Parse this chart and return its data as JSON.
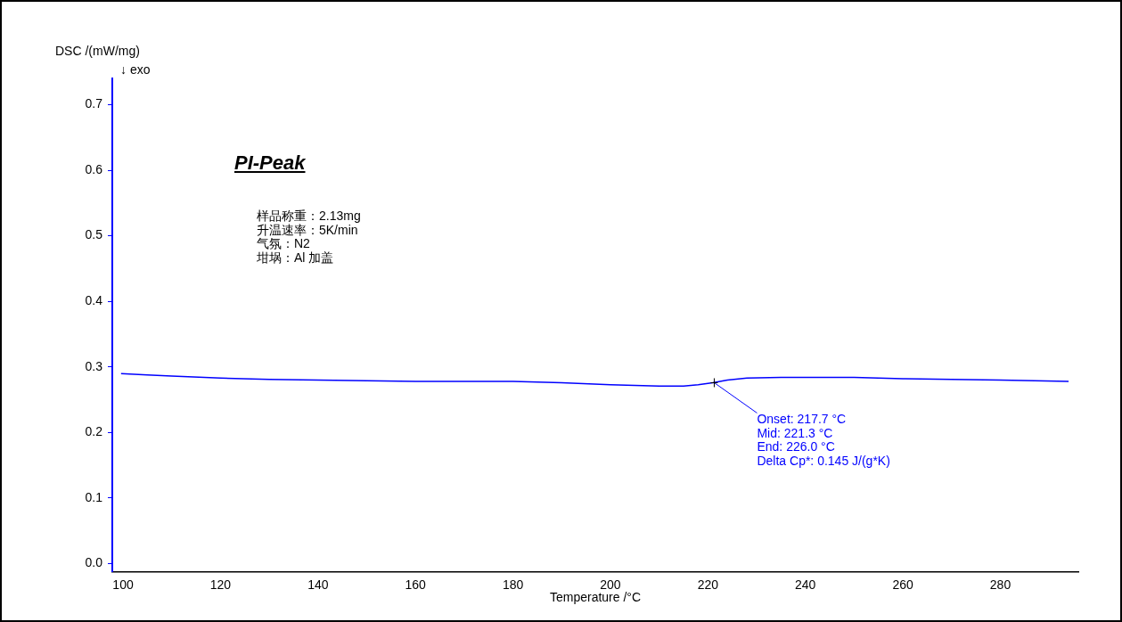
{
  "chart_data": {
    "type": "line",
    "title": "PI-Peak",
    "xlabel": "Temperature /°C",
    "ylabel": "DSC /(mW/mg)",
    "x": [
      99.6,
      105,
      110,
      120,
      130,
      140,
      150,
      160,
      170,
      180,
      190,
      200,
      210,
      215,
      218,
      221,
      224,
      228,
      235,
      240,
      250,
      260,
      270,
      280,
      294
    ],
    "series": [
      {
        "color": "#0000ff",
        "values": [
          0.29,
          0.288,
          0.286,
          0.283,
          0.281,
          0.28,
          0.279,
          0.278,
          0.278,
          0.278,
          0.276,
          0.273,
          0.271,
          0.271,
          0.273,
          0.276,
          0.28,
          0.283,
          0.284,
          0.284,
          0.284,
          0.282,
          0.281,
          0.28,
          0.278
        ]
      }
    ],
    "xlim": [
      97.8,
      296
    ],
    "xticks": [
      100,
      120,
      140,
      160,
      180,
      200,
      220,
      240,
      260,
      280
    ],
    "ylim": [
      -0.012,
      0.74
    ],
    "yticks": [
      {
        "value": 0,
        "label": "0.0"
      },
      0.1,
      0.2,
      0.3,
      0.4,
      0.5,
      0.6,
      0.7
    ],
    "annotations": [
      "↓ exo",
      "样品称重：2.13mg\n升温速率：5K/min\n气氛：N2\n坩埚：Al 加盖",
      {
        "text": "Onset: 217.7 °C\nMid: 221.3 °C\nEnd: 226.0 °C\nDelta Cp*: 0.145 J/(g*K)",
        "x": 221.3,
        "y": 0.276
      }
    ],
    "grid": false,
    "legend": false,
    "marker": "none",
    "line_style": "solid"
  }
}
